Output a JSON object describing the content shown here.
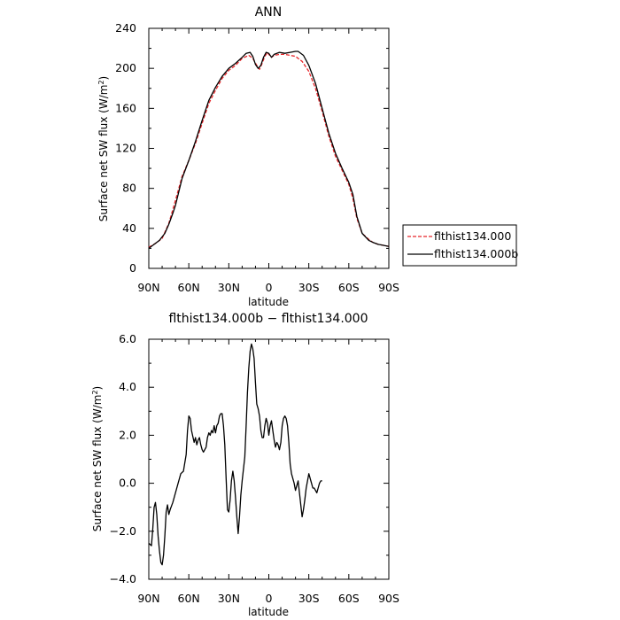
{
  "chart_data": [
    {
      "type": "line",
      "title": "ANN",
      "xlabel": "latitude",
      "ylabel": "Surface net SW flux (W/m",
      "ylabel_sup": "2",
      "ylabel_tail": ")",
      "xlim": [
        90,
        -90
      ],
      "ylim": [
        0,
        240
      ],
      "xticks": [
        90,
        60,
        30,
        0,
        -30,
        -60,
        -90
      ],
      "xtick_labels": [
        "90N",
        "60N",
        "30N",
        "0",
        "30S",
        "60S",
        "90S"
      ],
      "yticks": [
        0,
        40,
        80,
        120,
        160,
        200,
        240
      ],
      "ytick_labels": [
        "0",
        "40",
        "80",
        "120",
        "160",
        "200",
        "240"
      ],
      "legend": {
        "placement": "right"
      },
      "series": [
        {
          "name": "flthist134.000",
          "color": "#e8262a",
          "style": "dashed",
          "points": [
            [
              90,
              21
            ],
            [
              85,
              25
            ],
            [
              80,
              30
            ],
            [
              75,
              45
            ],
            [
              70,
              68
            ],
            [
              65,
              92
            ],
            [
              60,
              108
            ],
            [
              55,
              125
            ],
            [
              50,
              145
            ],
            [
              45,
              165
            ],
            [
              40,
              178
            ],
            [
              35,
              190
            ],
            [
              30,
              198
            ],
            [
              25,
              203
            ],
            [
              20,
              210
            ],
            [
              15,
              213
            ],
            [
              12,
              210
            ],
            [
              9,
              203
            ],
            [
              7,
              199
            ],
            [
              5,
              205
            ],
            [
              3,
              212
            ],
            [
              1,
              216
            ],
            [
              0,
              214
            ],
            [
              -2,
              211
            ],
            [
              -4,
              213
            ],
            [
              -8,
              214
            ],
            [
              -12,
              214
            ],
            [
              -16,
              213
            ],
            [
              -20,
              212
            ],
            [
              -25,
              207
            ],
            [
              -30,
              197
            ],
            [
              -35,
              180
            ],
            [
              -40,
              157
            ],
            [
              -45,
              132
            ],
            [
              -50,
              112
            ],
            [
              -55,
              98
            ],
            [
              -60,
              84
            ],
            [
              -63,
              70
            ],
            [
              -66,
              50
            ],
            [
              -70,
              35
            ],
            [
              -75,
              29
            ],
            [
              -78,
              26
            ],
            [
              -82,
              24
            ],
            [
              -86,
              23
            ],
            [
              -90,
              22
            ]
          ]
        },
        {
          "name": "flthist134.000b",
          "color": "#000000",
          "style": "solid",
          "points": [
            [
              90,
              20
            ],
            [
              86,
              24
            ],
            [
              82,
              28
            ],
            [
              78,
              35
            ],
            [
              75,
              44
            ],
            [
              72,
              55
            ],
            [
              70,
              63
            ],
            [
              65,
              90
            ],
            [
              60,
              108
            ],
            [
              55,
              127
            ],
            [
              50,
              148
            ],
            [
              45,
              168
            ],
            [
              40,
              181
            ],
            [
              35,
              192
            ],
            [
              30,
              200
            ],
            [
              25,
              205
            ],
            [
              20,
              211
            ],
            [
              17,
              215
            ],
            [
              14,
              216
            ],
            [
              12,
              212
            ],
            [
              10,
              204
            ],
            [
              8,
              200
            ],
            [
              6,
              203
            ],
            [
              4,
              211
            ],
            [
              2,
              216
            ],
            [
              0,
              215
            ],
            [
              -2,
              211
            ],
            [
              -4,
              214
            ],
            [
              -8,
              216
            ],
            [
              -12,
              215
            ],
            [
              -16,
              216
            ],
            [
              -20,
              217
            ],
            [
              -22,
              217
            ],
            [
              -26,
              213
            ],
            [
              -30,
              203
            ],
            [
              -35,
              185
            ],
            [
              -40,
              160
            ],
            [
              -45,
              135
            ],
            [
              -50,
              115
            ],
            [
              -55,
              100
            ],
            [
              -60,
              86
            ],
            [
              -63,
              74
            ],
            [
              -66,
              52
            ],
            [
              -70,
              35
            ],
            [
              -75,
              28
            ],
            [
              -78,
              26
            ],
            [
              -82,
              24
            ],
            [
              -86,
              23
            ],
            [
              -90,
              22
            ]
          ]
        }
      ]
    },
    {
      "type": "line",
      "title": "flthist134.000b − flthist134.000",
      "xlabel": "latitude",
      "ylabel": "Surface net SW flux (W/m",
      "ylabel_sup": "2",
      "ylabel_tail": ")",
      "xlim": [
        90,
        -90
      ],
      "ylim": [
        -4.0,
        6.0
      ],
      "xticks": [
        90,
        60,
        30,
        0,
        -30,
        -60,
        -90
      ],
      "xtick_labels": [
        "90N",
        "60N",
        "30N",
        "0",
        "30S",
        "60S",
        "90S"
      ],
      "yticks": [
        -4.0,
        -2.0,
        0.0,
        2.0,
        4.0,
        6.0
      ],
      "ytick_labels": [
        "−4.0",
        "−2.0",
        "0.0",
        "2.0",
        "4.0",
        "6.0"
      ],
      "series": [
        {
          "color": "#000000",
          "style": "solid",
          "points": [
            [
              90,
              -2.5
            ],
            [
              88,
              -2.6
            ],
            [
              87,
              -1.9
            ],
            [
              86,
              -1.0
            ],
            [
              85,
              -0.8
            ],
            [
              84,
              -1.3
            ],
            [
              83,
              -2.2
            ],
            [
              82,
              -2.8
            ],
            [
              81,
              -3.3
            ],
            [
              80,
              -3.4
            ],
            [
              79,
              -3.0
            ],
            [
              78,
              -2.2
            ],
            [
              77,
              -1.2
            ],
            [
              76,
              -0.9
            ],
            [
              75,
              -1.3
            ],
            [
              74,
              -1.1
            ],
            [
              72,
              -0.8
            ],
            [
              70,
              -0.4
            ],
            [
              68,
              0.0
            ],
            [
              66,
              0.4
            ],
            [
              64,
              0.5
            ],
            [
              62,
              1.2
            ],
            [
              61,
              2.2
            ],
            [
              60,
              2.8
            ],
            [
              59,
              2.7
            ],
            [
              58,
              2.2
            ],
            [
              56,
              1.7
            ],
            [
              55,
              1.9
            ],
            [
              54,
              1.6
            ],
            [
              53,
              1.8
            ],
            [
              52,
              1.9
            ],
            [
              51,
              1.6
            ],
            [
              50,
              1.4
            ],
            [
              49,
              1.3
            ],
            [
              48,
              1.4
            ],
            [
              47,
              1.5
            ],
            [
              46,
              1.9
            ],
            [
              45,
              2.1
            ],
            [
              44,
              2.0
            ],
            [
              43,
              2.2
            ],
            [
              42,
              2.1
            ],
            [
              41,
              2.4
            ],
            [
              40,
              2.1
            ],
            [
              39,
              2.4
            ],
            [
              38,
              2.5
            ],
            [
              37,
              2.8
            ],
            [
              36,
              2.9
            ],
            [
              35,
              2.9
            ],
            [
              34,
              2.4
            ],
            [
              33,
              1.6
            ],
            [
              32,
              0.2
            ],
            [
              31,
              -1.1
            ],
            [
              30,
              -1.2
            ],
            [
              29,
              -0.7
            ],
            [
              28,
              0.1
            ],
            [
              27,
              0.5
            ],
            [
              26,
              0.1
            ],
            [
              25,
              -0.6
            ],
            [
              24,
              -1.4
            ],
            [
              23,
              -2.1
            ],
            [
              22,
              -1.4
            ],
            [
              21,
              -0.5
            ],
            [
              20,
              0.1
            ],
            [
              19,
              0.6
            ],
            [
              18,
              1.1
            ],
            [
              17,
              2.4
            ],
            [
              16,
              3.8
            ],
            [
              15,
              4.8
            ],
            [
              14,
              5.5
            ],
            [
              13,
              5.8
            ],
            [
              12,
              5.6
            ],
            [
              11,
              5.2
            ],
            [
              10,
              4.2
            ],
            [
              9,
              3.3
            ],
            [
              8,
              3.1
            ],
            [
              7,
              2.8
            ],
            [
              6,
              2.2
            ],
            [
              5,
              1.9
            ],
            [
              4,
              1.9
            ],
            [
              3,
              2.4
            ],
            [
              2,
              2.7
            ],
            [
              1,
              2.5
            ],
            [
              0,
              2.0
            ],
            [
              -1,
              2.4
            ],
            [
              -2,
              2.6
            ],
            [
              -3,
              2.2
            ],
            [
              -4,
              1.8
            ],
            [
              -5,
              1.5
            ],
            [
              -6,
              1.7
            ],
            [
              -7,
              1.6
            ],
            [
              -8,
              1.4
            ],
            [
              -9,
              1.7
            ],
            [
              -10,
              2.4
            ],
            [
              -11,
              2.7
            ],
            [
              -12,
              2.8
            ],
            [
              -13,
              2.7
            ],
            [
              -14,
              2.4
            ],
            [
              -15,
              1.7
            ],
            [
              -16,
              0.8
            ],
            [
              -17,
              0.4
            ],
            [
              -18,
              0.2
            ],
            [
              -19,
              0.0
            ],
            [
              -20,
              -0.3
            ],
            [
              -21,
              -0.1
            ],
            [
              -22,
              0.1
            ],
            [
              -23,
              -0.4
            ],
            [
              -24,
              -0.9
            ],
            [
              -25,
              -1.4
            ],
            [
              -26,
              -1.1
            ],
            [
              -27,
              -0.7
            ],
            [
              -28,
              -0.2
            ],
            [
              -29,
              0.1
            ],
            [
              -30,
              0.4
            ],
            [
              -31,
              0.2
            ],
            [
              -32,
              0.0
            ],
            [
              -33,
              -0.2
            ],
            [
              -34,
              -0.2
            ],
            [
              -35,
              -0.3
            ],
            [
              -36,
              -0.4
            ],
            [
              -37,
              -0.2
            ],
            [
              -38,
              0.0
            ],
            [
              -39,
              0.1
            ],
            [
              -40,
              0.1
            ]
          ]
        }
      ]
    }
  ]
}
